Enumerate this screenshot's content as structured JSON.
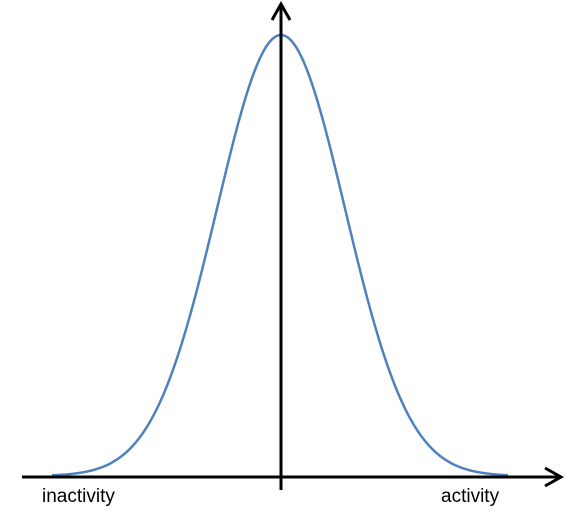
{
  "axis_labels": {
    "left": "inactivity",
    "right": "activity"
  }
}
